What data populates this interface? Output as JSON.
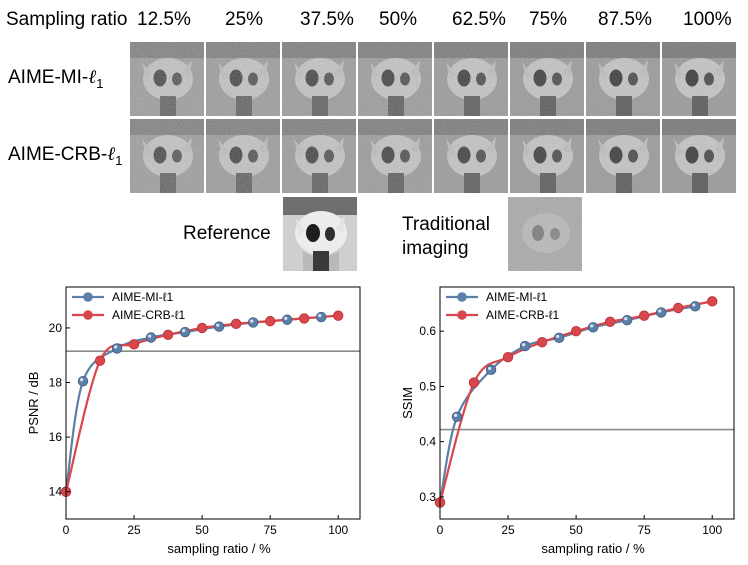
{
  "header": {
    "label": "Sampling ratio",
    "ratios": [
      "12.5%",
      "25%",
      "37.5%",
      "50%",
      "62.5%",
      "75%",
      "87.5%",
      "100%"
    ]
  },
  "rows": [
    {
      "name": "AIME-MI-",
      "sym": "ℓ",
      "sub": "1"
    },
    {
      "name": "AIME-CRB-",
      "sym": "ℓ",
      "sub": "1"
    }
  ],
  "reference_label": "Reference",
  "traditional_label_line1": "Traditional",
  "traditional_label_line2": "imaging",
  "colors": {
    "mi": "#5b7fa8",
    "crb": "#d9464b",
    "baseline": "#8a8a8a"
  },
  "chart_data": [
    {
      "type": "line",
      "xlabel": "sampling ratio / %",
      "ylabel": "PSNR / dB",
      "xlim": [
        0,
        108
      ],
      "ylim": [
        13,
        21.5
      ],
      "xticks": [
        0,
        25,
        50,
        75,
        100
      ],
      "yticks": [
        14,
        16,
        18,
        20
      ],
      "baseline": 19.15,
      "legend": "top-left",
      "series": [
        {
          "name": "AIME-MI-ℓ1",
          "x": [
            0,
            6.25,
            18.75,
            31.25,
            43.75,
            56.25,
            68.75,
            81.25,
            93.75
          ],
          "y": [
            14.0,
            18.05,
            19.25,
            19.65,
            19.85,
            20.05,
            20.2,
            20.3,
            20.4
          ]
        },
        {
          "name": "AIME-CRB-ℓ1",
          "x": [
            0,
            12.5,
            25,
            37.5,
            50,
            62.5,
            75,
            87.5,
            100
          ],
          "y": [
            14.0,
            18.8,
            19.4,
            19.75,
            20.0,
            20.15,
            20.25,
            20.35,
            20.45
          ]
        }
      ]
    },
    {
      "type": "line",
      "xlabel": "sampling ratio / %",
      "ylabel": "SSIM",
      "xlim": [
        0,
        108
      ],
      "ylim": [
        0.26,
        0.68
      ],
      "xticks": [
        0,
        25,
        50,
        75,
        100
      ],
      "yticks": [
        0.3,
        0.4,
        0.5,
        0.6
      ],
      "baseline": 0.422,
      "legend": "top-left",
      "series": [
        {
          "name": "AIME-MI-ℓ1",
          "x": [
            0,
            6.25,
            18.75,
            31.25,
            43.75,
            56.25,
            68.75,
            81.25,
            93.75
          ],
          "y": [
            0.29,
            0.445,
            0.53,
            0.573,
            0.588,
            0.607,
            0.62,
            0.634,
            0.645
          ]
        },
        {
          "name": "AIME-CRB-ℓ1",
          "x": [
            0,
            12.5,
            25,
            37.5,
            50,
            62.5,
            75,
            87.5,
            100
          ],
          "y": [
            0.29,
            0.507,
            0.553,
            0.58,
            0.6,
            0.617,
            0.628,
            0.642,
            0.654
          ]
        }
      ]
    }
  ]
}
